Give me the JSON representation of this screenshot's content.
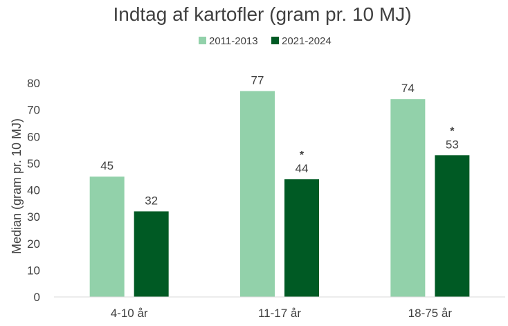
{
  "chart_data": {
    "type": "bar",
    "title": "Indtag af kartofler (gram pr. 10 MJ)",
    "xlabel": "",
    "ylabel": "Median (gram pr. 10 MJ)",
    "categories": [
      "4-10 år",
      "11-17 år",
      "18-75 år"
    ],
    "series": [
      {
        "name": "2011-2013",
        "color": "#92d1aa",
        "values": [
          45,
          77,
          74
        ],
        "labels": [
          "45",
          "77",
          "74"
        ],
        "markers": [
          "",
          "",
          ""
        ]
      },
      {
        "name": "2021-2024",
        "color": "#005a24",
        "values": [
          32,
          44,
          53
        ],
        "labels": [
          "32",
          "44",
          "53"
        ],
        "markers": [
          "",
          "*",
          "*"
        ]
      }
    ],
    "ylim": [
      0,
      80
    ],
    "yticks": [
      0,
      10,
      20,
      30,
      40,
      50,
      60,
      70,
      80
    ],
    "grid": false,
    "legend_position": "top-center"
  }
}
